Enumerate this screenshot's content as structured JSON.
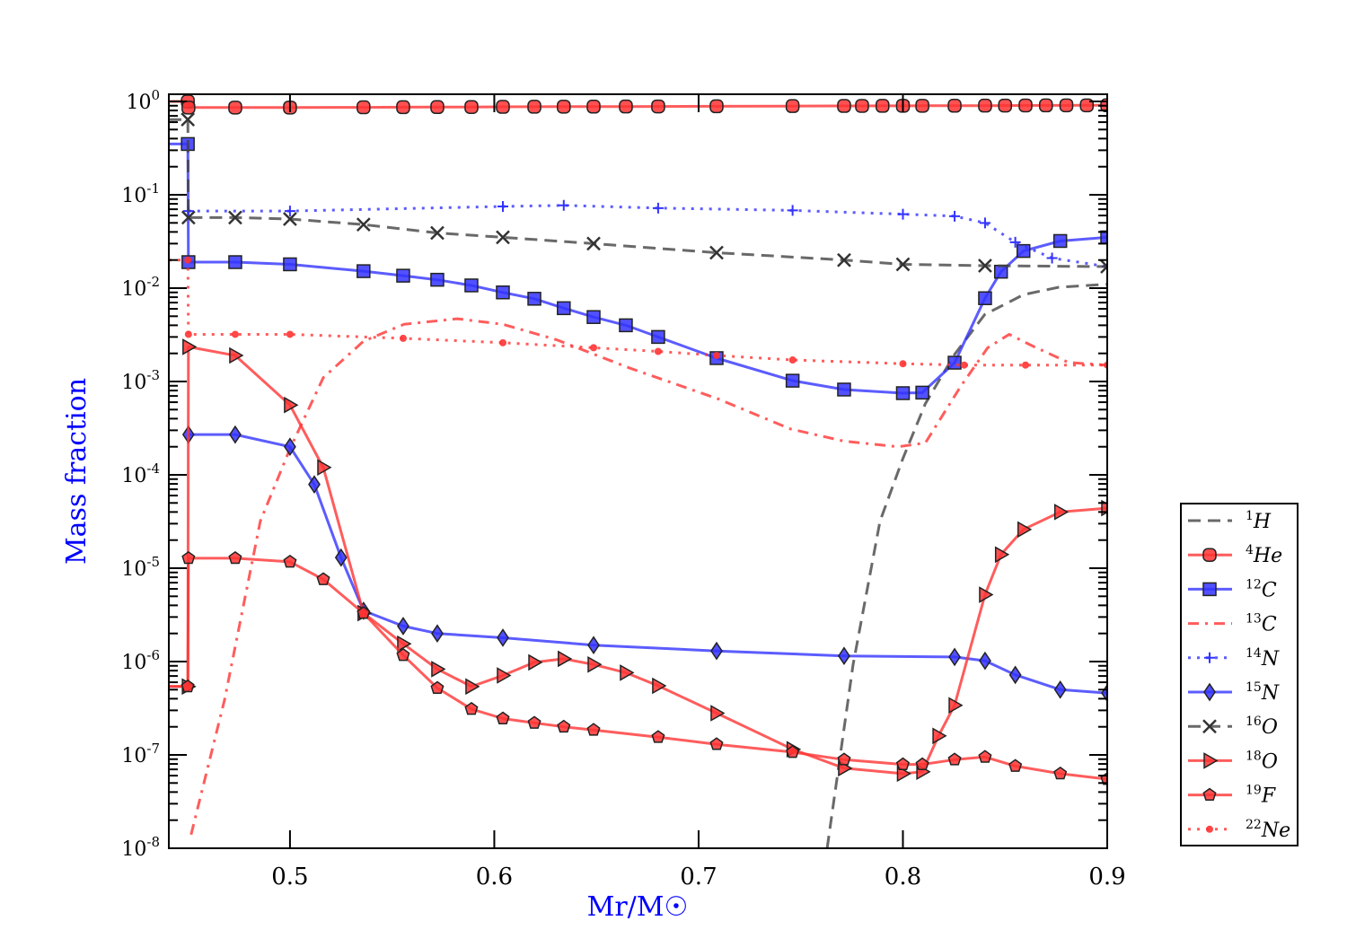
{
  "chart_data": {
    "type": "line",
    "title": "",
    "xlabel": "Mr/M☉",
    "ylabel": "Mass fraction",
    "xlim": [
      0.4407,
      0.9
    ],
    "ylim_log10": [
      -8,
      0.077
    ],
    "yscale": "log",
    "grid": false,
    "legend_placement": "right, outside lower",
    "x_ticks": [
      0.5,
      0.6,
      0.7,
      0.8,
      0.9
    ],
    "x_tick_labels": [
      "0.5",
      "0.6",
      "0.7",
      "0.8",
      "0.9"
    ],
    "y_tick_exponents": [
      0,
      -1,
      -2,
      -3,
      -4,
      -5,
      -6,
      -7,
      -8
    ],
    "y_tick_base": "10",
    "series": [
      {
        "name": "1H",
        "sup": "1",
        "sym": "H",
        "color": "#444444",
        "style": "dashed",
        "marker": "none",
        "x": [
          0.7629,
          0.7756,
          0.7888,
          0.8,
          0.811,
          0.8253,
          0.84,
          0.859,
          0.876,
          0.9
        ],
        "y": [
          1e-08,
          9.3e-07,
          3.2e-05,
          0.00015,
          0.00058,
          0.00195,
          0.0052,
          0.0085,
          0.0102,
          0.011
        ]
      },
      {
        "name": "4He",
        "sup": "4",
        "sym": "He",
        "color": "#ff3333",
        "style": "solid",
        "marker": "circle",
        "x": [
          0.4407,
          0.45,
          0.4503,
          0.4732,
          0.5,
          0.536,
          0.5554,
          0.5721,
          0.5888,
          0.6042,
          0.6196,
          0.634,
          0.6486,
          0.6644,
          0.6802,
          0.7088,
          0.746,
          0.7712,
          0.78,
          0.79,
          0.8,
          0.8095,
          0.8253,
          0.8402,
          0.85,
          0.86,
          0.87,
          0.88,
          0.89,
          0.9
        ],
        "y": [
          1.0,
          1.0,
          0.86,
          0.86,
          0.86,
          0.865,
          0.868,
          0.87,
          0.872,
          0.875,
          0.877,
          0.879,
          0.88,
          0.882,
          0.884,
          0.887,
          0.892,
          0.895,
          0.896,
          0.897,
          0.898,
          0.899,
          0.9,
          0.902,
          0.904,
          0.906,
          0.907,
          0.908,
          0.909,
          0.91
        ]
      },
      {
        "name": "12C",
        "sup": "12",
        "sym": "C",
        "color": "#3333ff",
        "style": "solid",
        "marker": "square",
        "x": [
          0.4407,
          0.45,
          0.4503,
          0.4732,
          0.5,
          0.536,
          0.5554,
          0.5721,
          0.5888,
          0.6042,
          0.6196,
          0.634,
          0.6486,
          0.6644,
          0.6802,
          0.7088,
          0.746,
          0.7712,
          0.8,
          0.8095,
          0.8253,
          0.8402,
          0.848,
          0.859,
          0.877,
          0.9
        ],
        "y": [
          0.35,
          0.35,
          0.019,
          0.019,
          0.018,
          0.0152,
          0.0136,
          0.0123,
          0.0107,
          0.009,
          0.0077,
          0.0061,
          0.0049,
          0.004,
          0.003,
          0.00178,
          0.00102,
          0.00082,
          0.00075,
          0.00076,
          0.00159,
          0.0078,
          0.015,
          0.025,
          0.032,
          0.035
        ]
      },
      {
        "name": "13C",
        "sup": "13",
        "sym": "C",
        "color": "#ff3333",
        "style": "dashdot",
        "marker": "none",
        "x": [
          0.4516,
          0.468,
          0.4855,
          0.5,
          0.5163,
          0.536,
          0.5558,
          0.582,
          0.6042,
          0.6305,
          0.666,
          0.7097,
          0.745,
          0.771,
          0.7976,
          0.811,
          0.8283,
          0.8415,
          0.852,
          0.8635,
          0.881,
          0.9
        ],
        "y": [
          1.4e-08,
          3.9e-07,
          3.2e-05,
          0.00019,
          0.0011,
          0.0027,
          0.0041,
          0.0047,
          0.0041,
          0.0028,
          0.0014,
          0.00065,
          0.00031,
          0.00023,
          0.0002,
          0.00022,
          0.00089,
          0.0023,
          0.0032,
          0.0024,
          0.0016,
          0.0015
        ]
      },
      {
        "name": "14N",
        "sup": "14",
        "sym": "N",
        "color": "#3333ff",
        "style": "dotted",
        "marker": "plus",
        "x": [
          0.4503,
          0.5,
          0.6042,
          0.634,
          0.6802,
          0.746,
          0.8,
          0.8253,
          0.8402,
          0.855,
          0.873,
          0.9
        ],
        "y": [
          0.067,
          0.067,
          0.075,
          0.077,
          0.072,
          0.068,
          0.062,
          0.059,
          0.05,
          0.031,
          0.021,
          0.017
        ]
      },
      {
        "name": "15N",
        "sup": "15",
        "sym": "N",
        "color": "#3333ff",
        "style": "solid",
        "marker": "diamond",
        "x": [
          0.4503,
          0.4732,
          0.5,
          0.5119,
          0.525,
          0.536,
          0.5554,
          0.5721,
          0.6042,
          0.6486,
          0.7088,
          0.7712,
          0.8253,
          0.8402,
          0.855,
          0.877,
          0.9
        ],
        "y": [
          0.00027,
          0.00027,
          0.0002,
          7.9e-05,
          1.3e-05,
          3.5e-06,
          2.4e-06,
          2e-06,
          1.8e-06,
          1.5e-06,
          1.3e-06,
          1.15e-06,
          1.12e-06,
          1.02e-06,
          7.2e-07,
          5e-07,
          4.6e-07
        ]
      },
      {
        "name": "16O",
        "sup": "16",
        "sym": "O",
        "color": "#444444",
        "style": "dashed",
        "marker": "x",
        "x": [
          0.4407,
          0.45,
          0.4503,
          0.4732,
          0.5,
          0.536,
          0.5721,
          0.6042,
          0.6486,
          0.7088,
          0.7712,
          0.8,
          0.8402,
          0.9
        ],
        "y": [
          0.64,
          0.64,
          0.057,
          0.057,
          0.055,
          0.048,
          0.039,
          0.035,
          0.03,
          0.024,
          0.02,
          0.018,
          0.0174,
          0.017
        ]
      },
      {
        "name": "18O",
        "sup": "18",
        "sym": "O",
        "color": "#ff3333",
        "style": "solid",
        "marker": "triangle",
        "x": [
          0.4407,
          0.45,
          0.4503,
          0.4732,
          0.5,
          0.5163,
          0.536,
          0.5554,
          0.5721,
          0.5888,
          0.6042,
          0.6196,
          0.634,
          0.6486,
          0.6644,
          0.6802,
          0.7088,
          0.746,
          0.7712,
          0.8,
          0.8095,
          0.8174,
          0.8253,
          0.8402,
          0.848,
          0.859,
          0.877,
          0.9
        ],
        "y": [
          5.4e-07,
          5.4e-07,
          0.00235,
          0.0019,
          0.00056,
          0.00012,
          3.3e-06,
          1.55e-06,
          8.3e-07,
          5.4e-07,
          7.1e-07,
          9.8e-07,
          1.07e-06,
          9.3e-07,
          7.6e-07,
          5.5e-07,
          2.8e-07,
          1.15e-07,
          7.2e-08,
          6.3e-08,
          6.6e-08,
          1.6e-07,
          3.4e-07,
          5.2e-06,
          1.4e-05,
          2.6e-05,
          4e-05,
          4.4e-05
        ]
      },
      {
        "name": "19F",
        "sup": "19",
        "sym": "F",
        "color": "#ff3333",
        "style": "solid",
        "marker": "pentagon",
        "x": [
          0.4407,
          0.45,
          0.4503,
          0.4732,
          0.5,
          0.5163,
          0.536,
          0.5554,
          0.5721,
          0.5888,
          0.6042,
          0.6196,
          0.634,
          0.6486,
          0.6802,
          0.7088,
          0.746,
          0.7712,
          0.8,
          0.8095,
          0.8253,
          0.8402,
          0.855,
          0.877,
          0.9
        ],
        "y": [
          5.4e-07,
          5.4e-07,
          1.28e-05,
          1.28e-05,
          1.17e-05,
          7.6e-06,
          3.3e-06,
          1.17e-06,
          5.2e-07,
          3.1e-07,
          2.45e-07,
          2.2e-07,
          2e-07,
          1.85e-07,
          1.55e-07,
          1.3e-07,
          1.07e-07,
          8.9e-08,
          7.9e-08,
          7.9e-08,
          8.9e-08,
          9.5e-08,
          7.6e-08,
          6.3e-08,
          5.5e-08
        ]
      },
      {
        "name": "22Ne",
        "sup": "22",
        "sym": "Ne",
        "color": "#ff3333",
        "style": "dotted",
        "marker": "dot",
        "x": [
          0.4407,
          0.45,
          0.4503,
          0.4732,
          0.5,
          0.5554,
          0.6042,
          0.6486,
          0.6802,
          0.7088,
          0.746,
          0.8,
          0.83,
          0.86,
          0.9
        ],
        "y": [
          0.02,
          0.02,
          0.0032,
          0.0032,
          0.0032,
          0.0029,
          0.0026,
          0.0023,
          0.0021,
          0.0019,
          0.0017,
          0.00155,
          0.0015,
          0.0015,
          0.0015
        ]
      }
    ]
  }
}
